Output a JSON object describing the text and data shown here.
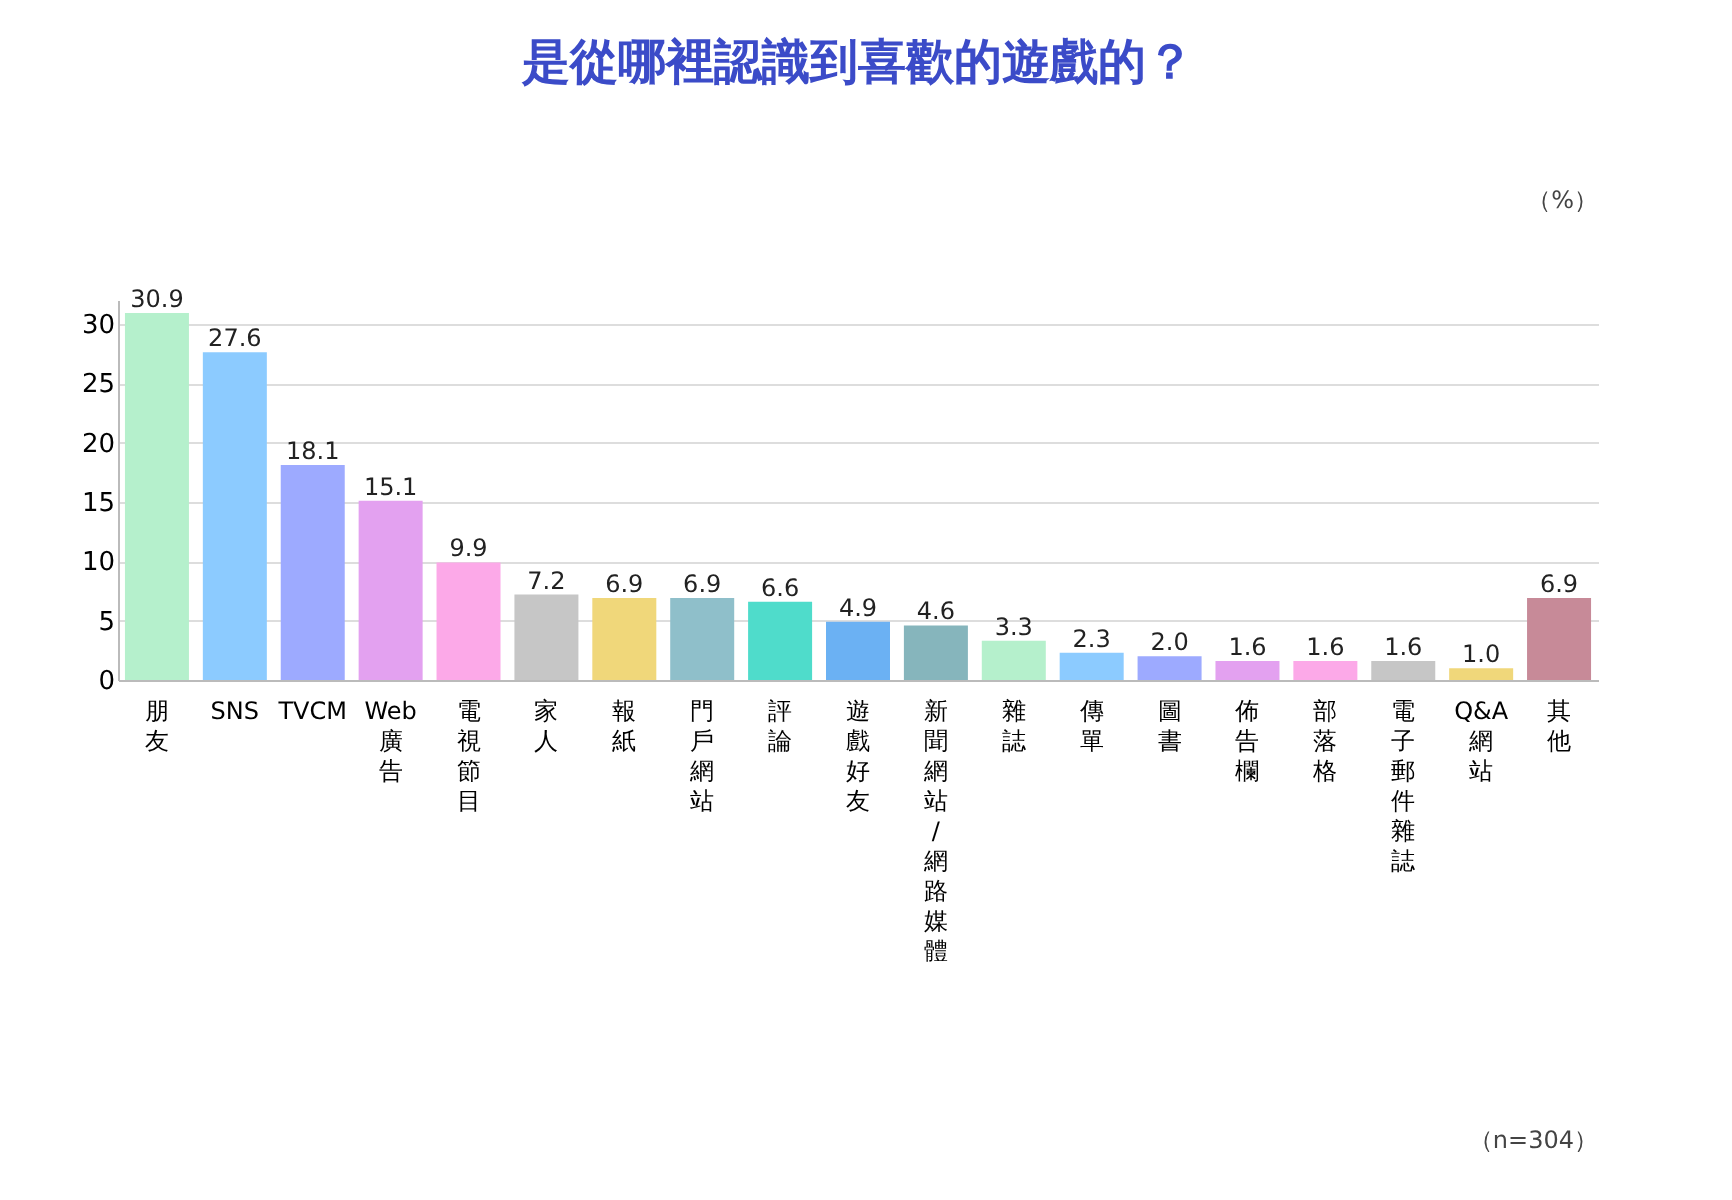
{
  "chart_data": {
    "type": "bar",
    "title": "是從哪裡認識到喜歡的遊戲的？",
    "categories": [
      "朋友",
      "SNS",
      "TVCM",
      "Web廣告",
      "電視節目",
      "家人",
      "報紙",
      "門戶網站",
      "評論",
      "遊戲好友",
      "新聞網站/網路媒體",
      "雜誌",
      "傳單",
      "圖書",
      "佈告欄",
      "部落格",
      "電子郵件雜誌",
      "Q&A網站",
      "其他"
    ],
    "values": [
      30.9,
      27.6,
      18.1,
      15.1,
      9.9,
      7.2,
      6.9,
      6.9,
      6.6,
      4.9,
      4.6,
      3.3,
      2.3,
      2.0,
      1.6,
      1.6,
      1.6,
      1.0,
      6.9
    ],
    "colors": [
      "#b5f0cc",
      "#8ccbff",
      "#9daaff",
      "#e3a1f0",
      "#fca9e8",
      "#c6c6c6",
      "#f0d77a",
      "#8fbfca",
      "#4fdccb",
      "#6bb1f3",
      "#86b5bc",
      "#b5f0cc",
      "#8ccbff",
      "#9daaff",
      "#e3a1f0",
      "#fca9e8",
      "#c6c6c6",
      "#f0d77a",
      "#c78a98"
    ],
    "value_labels": [
      "30.9",
      "27.6",
      "18.1",
      "15.1",
      "9.9",
      "7.2",
      "6.9",
      "6.9",
      "6.6",
      "4.9",
      "4.6",
      "3.3",
      "2.3",
      "2.0",
      "1.6",
      "1.6",
      "1.6",
      "1.0",
      "6.9"
    ],
    "ylim": [
      0,
      32
    ],
    "yticks": [
      0,
      5,
      10,
      15,
      20,
      25,
      30
    ],
    "grid": "y",
    "annotations": [
      "（%）",
      "（n=304）"
    ]
  }
}
